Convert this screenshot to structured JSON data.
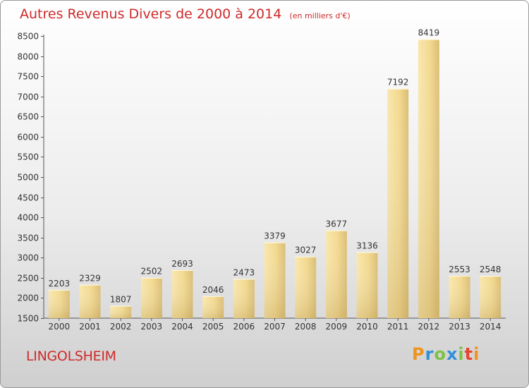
{
  "chart_data": {
    "type": "bar",
    "title": "Autres Revenus Divers de 2000 à 2014",
    "unit_label": "(en milliers d'€)",
    "categories": [
      "2000",
      "2001",
      "2002",
      "2003",
      "2004",
      "2005",
      "2006",
      "2007",
      "2008",
      "2009",
      "2010",
      "2011",
      "2012",
      "2013",
      "2014"
    ],
    "values": [
      2203,
      2329,
      1807,
      2502,
      2693,
      2046,
      2473,
      3379,
      3027,
      3677,
      3136,
      7192,
      8419,
      2553,
      2548
    ],
    "value_labels": [
      "2203",
      "2329",
      "1807",
      "2502",
      "2693",
      "2046",
      "2473",
      "3379",
      "3027",
      "3677",
      "3136",
      "7192",
      "8419",
      "2553",
      "2548"
    ],
    "ylim": [
      1500,
      8500
    ],
    "yticks": [
      1500,
      2000,
      2500,
      3000,
      3500,
      4000,
      4500,
      5000,
      5500,
      6000,
      6500,
      7000,
      7500,
      8000,
      8500
    ],
    "ytick_labels": [
      "1500",
      "2000",
      "2500",
      "3000",
      "3500",
      "4000",
      "4500",
      "5000",
      "5500",
      "6000",
      "6500",
      "7000",
      "7500",
      "8000",
      "8500"
    ],
    "xlabel": "",
    "ylabel": "",
    "grid": false,
    "colors": {
      "bar_light": "#f7e2a0",
      "bar_dark": "#c8ad68",
      "title": "#cf2a2a"
    }
  },
  "footer": {
    "city": "LINGOLSHEIM",
    "logo_letters": [
      "P",
      "r",
      "o",
      "x",
      "i",
      "t",
      "i"
    ],
    "logo_colors": [
      "#f0931e",
      "#2f8fd8",
      "#7cc242",
      "#2f8fd8",
      "#7cc242",
      "#e8432c",
      "#f0931e"
    ]
  }
}
